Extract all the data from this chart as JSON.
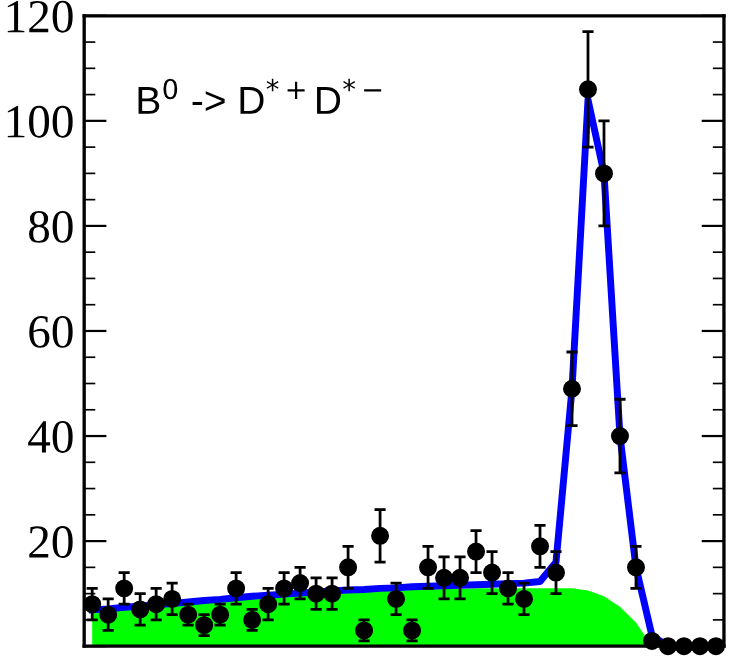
{
  "chart_data": {
    "type": "scatter",
    "annotations": [
      "B$^{0}$ -> D$^{*+}$D$^{*−}$"
    ],
    "categories": [
      null,
      null,
      null,
      null,
      null,
      null,
      null,
      null,
      null,
      null,
      null,
      null,
      null,
      null,
      null,
      null,
      null,
      null,
      null,
      null,
      null,
      null,
      null,
      null,
      null,
      null,
      null,
      null,
      null,
      null,
      null,
      null,
      null,
      null,
      null,
      null,
      null,
      null,
      null,
      null
    ],
    "series": [
      {
        "type": "area",
        "color": "#00ff00",
        "values": [
          6.6,
          6.9,
          7.2,
          7.5,
          7.8,
          8,
          8.3,
          8.5,
          8.8,
          9,
          9.2,
          9.4,
          9.6,
          9.8,
          10,
          10.1,
          10.3,
          10.4,
          10.5,
          10.6,
          10.7,
          10.8,
          10.9,
          10.9,
          11,
          11,
          11,
          11,
          11,
          11,
          11,
          10.6,
          9.5,
          7.5,
          4.5,
          0,
          null,
          null,
          null,
          null
        ]
      },
      {
        "type": "line",
        "color": "#0000ff",
        "values": [
          6.9,
          7.1,
          7.4,
          7.6,
          7.9,
          8.1,
          8.4,
          8.7,
          8.9,
          9.2,
          9.5,
          9.7,
          9.9,
          10.1,
          10.3,
          10.5,
          10.7,
          10.8,
          11,
          11.1,
          11.3,
          11.4,
          11.5,
          11.6,
          11.7,
          11.8,
          11.9,
          12,
          12.3,
          16,
          49,
          104,
          90,
          40,
          15,
          2,
          0,
          0,
          null,
          null
        ]
      },
      {
        "color": "#000000",
        "marker": "circle",
        "values": [
          8,
          6,
          11,
          7,
          8,
          9,
          6,
          4,
          6,
          11,
          5,
          8,
          11,
          12,
          10,
          10,
          15,
          3,
          21,
          9,
          3,
          15,
          13,
          13,
          18,
          14,
          11,
          9,
          19,
          14,
          49,
          106,
          90,
          40,
          15,
          1,
          0,
          0,
          0,
          0
        ],
        "errors": [
          3,
          3,
          3,
          3,
          3,
          3,
          2,
          2,
          2,
          3,
          2,
          3,
          3,
          3,
          3,
          3,
          4,
          2,
          5,
          3,
          2,
          4,
          4,
          4,
          4,
          4,
          3,
          3,
          4,
          4,
          7,
          11,
          10,
          7,
          4,
          1,
          null,
          null,
          null,
          null
        ]
      }
    ],
    "ylim": [
      0,
      120
    ],
    "yticks": [
      {
        "value": 0,
        "label": null
      },
      20,
      40,
      60,
      80,
      100,
      120
    ],
    "tick_labels": "y",
    "grid": false,
    "legend": false
  }
}
